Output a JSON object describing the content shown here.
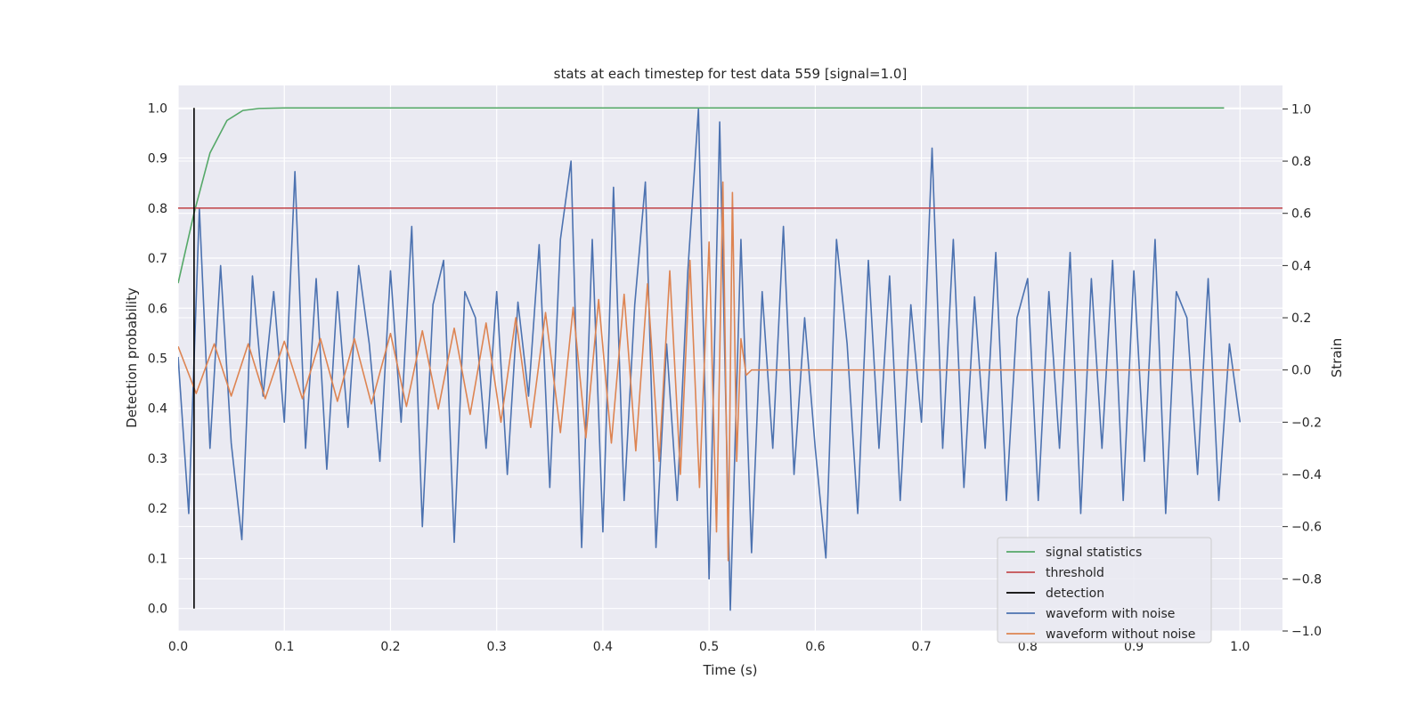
{
  "chart_data": {
    "type": "line",
    "title": "stats at each timestep for test data 559 [signal=1.0]",
    "xlabel": "Time (s)",
    "ylabel": "Detection probability",
    "ylabel_right": "Strain",
    "xlim": [
      0.0,
      1.04
    ],
    "ylim": [
      -0.045,
      1.045
    ],
    "ylim_right": [
      -1.0,
      1.09
    ],
    "xticks": [
      "0.0",
      "0.1",
      "0.2",
      "0.3",
      "0.4",
      "0.5",
      "0.6",
      "0.7",
      "0.8",
      "0.9",
      "1.0"
    ],
    "yticks": [
      "0.0",
      "0.1",
      "0.2",
      "0.3",
      "0.4",
      "0.5",
      "0.6",
      "0.7",
      "0.8",
      "0.9",
      "1.0"
    ],
    "yticks_right": [
      "−1.0",
      "−0.8",
      "−0.6",
      "−0.4",
      "−0.2",
      "0.0",
      "0.2",
      "0.4",
      "0.6",
      "0.8",
      "1.0"
    ],
    "grid": true,
    "legend_position": "lower-right",
    "background": "#eaeaf2",
    "series": [
      {
        "name": "signal statistics",
        "color": "#55a868",
        "axis": "left",
        "x": [
          0.0,
          0.015,
          0.03,
          0.046,
          0.061,
          0.076,
          0.1,
          0.2,
          0.3,
          0.4,
          0.5,
          0.6,
          0.7,
          0.8,
          0.9,
          0.985
        ],
        "y": [
          0.65,
          0.79,
          0.91,
          0.975,
          0.995,
          0.999,
          1.0,
          1.0,
          1.0,
          1.0,
          1.0,
          1.0,
          1.0,
          1.0,
          1.0,
          1.0
        ]
      },
      {
        "name": "threshold",
        "color": "#c44e52",
        "axis": "left",
        "x": [
          0.0,
          1.04
        ],
        "y": [
          0.8,
          0.8
        ]
      },
      {
        "name": "detection",
        "color": "#000000",
        "axis": "left",
        "x": [
          0.015,
          0.015
        ],
        "y": [
          0.0,
          1.0
        ]
      },
      {
        "name": "waveform with noise",
        "color": "#4c72b0",
        "axis": "right",
        "x": [
          0.0,
          0.01,
          0.02,
          0.03,
          0.04,
          0.05,
          0.06,
          0.07,
          0.08,
          0.09,
          0.1,
          0.11,
          0.12,
          0.13,
          0.14,
          0.15,
          0.16,
          0.17,
          0.18,
          0.19,
          0.2,
          0.21,
          0.22,
          0.23,
          0.24,
          0.25,
          0.26,
          0.27,
          0.28,
          0.29,
          0.3,
          0.31,
          0.32,
          0.33,
          0.34,
          0.35,
          0.36,
          0.37,
          0.38,
          0.39,
          0.4,
          0.41,
          0.42,
          0.43,
          0.44,
          0.45,
          0.46,
          0.47,
          0.48,
          0.49,
          0.5,
          0.51,
          0.52,
          0.53,
          0.54,
          0.55,
          0.56,
          0.57,
          0.58,
          0.59,
          0.6,
          0.61,
          0.62,
          0.63,
          0.64,
          0.65,
          0.66,
          0.67,
          0.68,
          0.69,
          0.7,
          0.71,
          0.72,
          0.73,
          0.74,
          0.75,
          0.76,
          0.77,
          0.78,
          0.79,
          0.8,
          0.81,
          0.82,
          0.83,
          0.84,
          0.85,
          0.86,
          0.87,
          0.88,
          0.89,
          0.9,
          0.91,
          0.92,
          0.93,
          0.94,
          0.95,
          0.96,
          0.97,
          0.98,
          0.99,
          1.0
        ],
        "y": [
          0.05,
          -0.55,
          0.62,
          -0.3,
          0.4,
          -0.28,
          -0.65,
          0.36,
          -0.1,
          0.3,
          -0.2,
          0.76,
          -0.3,
          0.35,
          -0.38,
          0.3,
          -0.22,
          0.4,
          0.1,
          -0.35,
          0.38,
          -0.2,
          0.55,
          -0.6,
          0.25,
          0.42,
          -0.66,
          0.3,
          0.2,
          -0.3,
          0.3,
          -0.4,
          0.26,
          -0.1,
          0.48,
          -0.45,
          0.5,
          0.8,
          -0.68,
          0.5,
          -0.62,
          0.7,
          -0.5,
          0.25,
          0.72,
          -0.68,
          0.1,
          -0.5,
          0.38,
          1.0,
          -0.8,
          0.95,
          -0.92,
          0.5,
          -0.7,
          0.3,
          -0.3,
          0.55,
          -0.4,
          0.2,
          -0.3,
          -0.72,
          0.5,
          0.1,
          -0.55,
          0.42,
          -0.3,
          0.36,
          -0.5,
          0.25,
          -0.2,
          0.85,
          -0.3,
          0.5,
          -0.45,
          0.28,
          -0.3,
          0.45,
          -0.5,
          0.2,
          0.35,
          -0.5,
          0.3,
          -0.3,
          0.45,
          -0.55,
          0.35,
          -0.3,
          0.42,
          -0.5,
          0.38,
          -0.35,
          0.5,
          -0.55,
          0.3,
          0.2,
          -0.4,
          0.35,
          -0.5,
          0.1,
          -0.2
        ]
      },
      {
        "name": "waveform without noise",
        "color": "#dd8452",
        "axis": "right",
        "x": [
          0.0,
          0.017,
          0.034,
          0.05,
          0.066,
          0.082,
          0.1,
          0.117,
          0.134,
          0.15,
          0.166,
          0.182,
          0.2,
          0.215,
          0.23,
          0.245,
          0.26,
          0.275,
          0.29,
          0.304,
          0.318,
          0.332,
          0.346,
          0.36,
          0.372,
          0.384,
          0.396,
          0.408,
          0.42,
          0.431,
          0.442,
          0.453,
          0.463,
          0.473,
          0.482,
          0.491,
          0.5,
          0.507,
          0.513,
          0.518,
          0.522,
          0.526,
          0.53,
          0.535,
          0.54,
          0.6,
          0.7,
          0.8,
          0.9,
          1.0
        ],
        "y": [
          0.09,
          -0.09,
          0.1,
          -0.1,
          0.1,
          -0.11,
          0.11,
          -0.11,
          0.12,
          -0.12,
          0.12,
          -0.13,
          0.14,
          -0.14,
          0.15,
          -0.15,
          0.16,
          -0.17,
          0.18,
          -0.2,
          0.2,
          -0.22,
          0.22,
          -0.24,
          0.24,
          -0.26,
          0.27,
          -0.28,
          0.29,
          -0.31,
          0.33,
          -0.35,
          0.38,
          -0.4,
          0.42,
          -0.45,
          0.49,
          -0.62,
          0.72,
          -0.73,
          0.68,
          -0.35,
          0.12,
          -0.02,
          0.0,
          0.0,
          0.0,
          0.0,
          0.0,
          0.0
        ]
      }
    ]
  }
}
